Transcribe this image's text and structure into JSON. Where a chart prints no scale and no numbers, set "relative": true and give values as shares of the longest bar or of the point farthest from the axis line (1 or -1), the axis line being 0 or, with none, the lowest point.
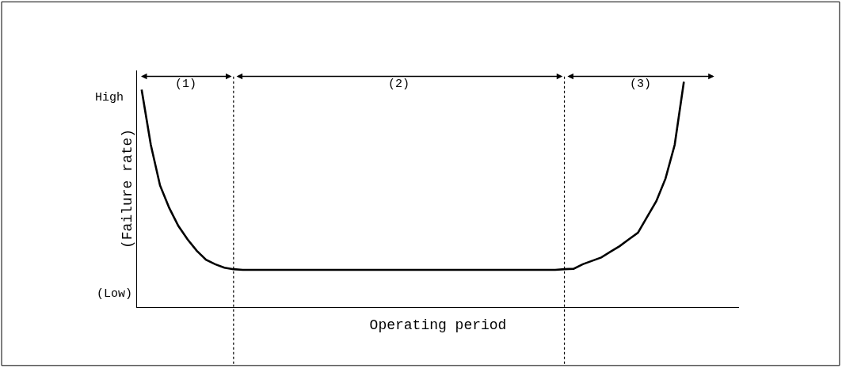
{
  "chart_data": {
    "type": "line",
    "relative": true,
    "xlabel": "Operating period",
    "ylabel": "(Failure rate)",
    "categories": [
      null,
      null,
      null,
      null,
      null,
      null,
      null,
      null,
      null,
      null,
      null,
      null,
      null,
      null,
      null,
      null,
      null,
      null,
      null,
      null,
      null,
      null,
      null,
      null,
      null,
      null,
      null,
      null,
      null,
      null,
      null,
      null,
      null,
      null,
      null,
      null,
      null,
      null,
      null,
      null,
      null,
      null,
      null,
      null,
      null,
      null,
      null,
      null,
      null,
      null,
      null,
      null,
      null,
      null,
      null,
      null,
      null,
      null,
      null,
      null,
      null,
      null,
      null,
      null,
      null,
      null
    ],
    "series": [
      {
        "color": "#000000",
        "values": [
          0.965,
          0.72,
          0.54,
          0.44,
          0.36,
          0.3,
          0.25,
          0.21,
          0.19,
          0.175,
          0.168,
          0.165,
          0.165,
          0.165,
          0.165,
          0.165,
          0.165,
          0.165,
          0.165,
          0.165,
          0.165,
          0.165,
          0.165,
          0.165,
          0.165,
          0.165,
          0.165,
          0.165,
          0.165,
          0.165,
          0.165,
          0.165,
          0.165,
          0.165,
          0.165,
          0.165,
          0.165,
          0.165,
          0.165,
          0.165,
          0.165,
          0.165,
          0.165,
          0.165,
          0.165,
          0.165,
          0.168,
          0.17,
          0.19,
          0.205,
          0.22,
          0.245,
          0.27,
          0.3,
          0.33,
          0.4,
          0.47,
          0.57,
          0.72,
          1.0,
          null,
          null,
          null,
          null,
          null,
          null
        ]
      }
    ],
    "annotations": [
      "High",
      "(Low)",
      "(1)",
      "(2)",
      "(3)"
    ],
    "marker": "none",
    "line_style": "solid"
  }
}
